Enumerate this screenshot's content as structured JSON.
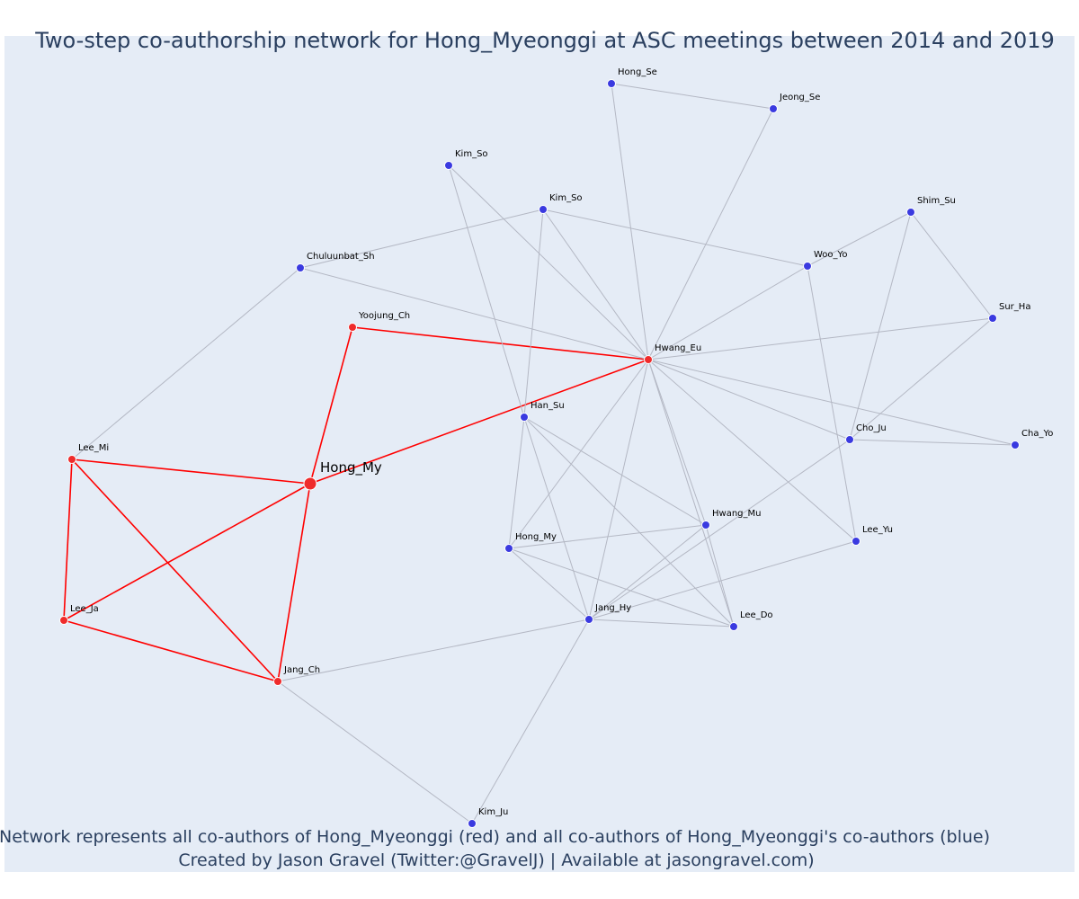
{
  "title": "Two-step co-authorship network for Hong_Myeonggi at ASC meetings between 2014 and 2019",
  "caption": {
    "line1": "Network represents all co-authors of Hong_Myeonggi (red) and all co-authors of Hong_Myeonggi's co-authors (blue)",
    "line2": "Created by Jason Gravel (Twitter:@GravelJ) | Available at jasongravel.com)"
  },
  "colors": {
    "background": "#e5ecf6",
    "red_node": "#ef2b2b",
    "blue_node": "#3a3ae0",
    "red_edge": "#ff0000",
    "grey_edge": "#b4b8c4",
    "text": "#2a3f5f"
  },
  "chart_data": {
    "type": "network",
    "nodes": [
      {
        "id": "hong_my_focal",
        "label": "Hong_My",
        "group": "focal"
      },
      {
        "id": "hwang_eu",
        "label": "Hwang_Eu",
        "group": "red"
      },
      {
        "id": "yoojung_ch",
        "label": "Yoojung_Ch",
        "group": "red"
      },
      {
        "id": "lee_mi",
        "label": "Lee_Mi",
        "group": "red"
      },
      {
        "id": "lee_ja",
        "label": "Lee_Ja",
        "group": "red"
      },
      {
        "id": "jang_ch",
        "label": "Jang_Ch",
        "group": "red"
      },
      {
        "id": "hong_se",
        "label": "Hong_Se",
        "group": "blue"
      },
      {
        "id": "jeong_se",
        "label": "Jeong_Se",
        "group": "blue"
      },
      {
        "id": "kim_so_1",
        "label": "Kim_So",
        "group": "blue"
      },
      {
        "id": "kim_so_2",
        "label": "Kim_So",
        "group": "blue"
      },
      {
        "id": "shim_su",
        "label": "Shim_Su",
        "group": "blue"
      },
      {
        "id": "chuluunbat_sh",
        "label": "Chuluunbat_Sh",
        "group": "blue"
      },
      {
        "id": "woo_yo",
        "label": "Woo_Yo",
        "group": "blue"
      },
      {
        "id": "sur_ha",
        "label": "Sur_Ha",
        "group": "blue"
      },
      {
        "id": "han_su",
        "label": "Han_Su",
        "group": "blue"
      },
      {
        "id": "cho_ju",
        "label": "Cho_Ju",
        "group": "blue"
      },
      {
        "id": "cha_yo",
        "label": "Cha_Yo",
        "group": "blue"
      },
      {
        "id": "hwang_mu",
        "label": "Hwang_Mu",
        "group": "blue"
      },
      {
        "id": "hong_my_2",
        "label": "Hong_My",
        "group": "blue"
      },
      {
        "id": "lee_yu",
        "label": "Lee_Yu",
        "group": "blue"
      },
      {
        "id": "jang_hy",
        "label": "Jang_Hy",
        "group": "blue"
      },
      {
        "id": "lee_do",
        "label": "Lee_Do",
        "group": "blue"
      },
      {
        "id": "kim_ju",
        "label": "Kim_Ju",
        "group": "blue"
      }
    ],
    "edges": [
      {
        "source": "hong_my_focal",
        "target": "hwang_eu",
        "kind": "red"
      },
      {
        "source": "hong_my_focal",
        "target": "yoojung_ch",
        "kind": "red"
      },
      {
        "source": "hong_my_focal",
        "target": "lee_mi",
        "kind": "red"
      },
      {
        "source": "hong_my_focal",
        "target": "lee_ja",
        "kind": "red"
      },
      {
        "source": "hong_my_focal",
        "target": "jang_ch",
        "kind": "red"
      },
      {
        "source": "yoojung_ch",
        "target": "hwang_eu",
        "kind": "red"
      },
      {
        "source": "lee_mi",
        "target": "lee_ja",
        "kind": "red"
      },
      {
        "source": "lee_mi",
        "target": "jang_ch",
        "kind": "red"
      },
      {
        "source": "lee_ja",
        "target": "jang_ch",
        "kind": "red"
      },
      {
        "source": "hong_se",
        "target": "jeong_se",
        "kind": "grey"
      },
      {
        "source": "hong_se",
        "target": "hwang_eu",
        "kind": "grey"
      },
      {
        "source": "jeong_se",
        "target": "hwang_eu",
        "kind": "grey"
      },
      {
        "source": "kim_so_1",
        "target": "hwang_eu",
        "kind": "grey"
      },
      {
        "source": "kim_so_1",
        "target": "han_su",
        "kind": "grey"
      },
      {
        "source": "kim_so_2",
        "target": "hwang_eu",
        "kind": "grey"
      },
      {
        "source": "kim_so_2",
        "target": "chuluunbat_sh",
        "kind": "grey"
      },
      {
        "source": "kim_so_2",
        "target": "woo_yo",
        "kind": "grey"
      },
      {
        "source": "kim_so_2",
        "target": "han_su",
        "kind": "grey"
      },
      {
        "source": "chuluunbat_sh",
        "target": "hwang_eu",
        "kind": "grey"
      },
      {
        "source": "chuluunbat_sh",
        "target": "lee_mi",
        "kind": "grey"
      },
      {
        "source": "shim_su",
        "target": "woo_yo",
        "kind": "grey"
      },
      {
        "source": "shim_su",
        "target": "sur_ha",
        "kind": "grey"
      },
      {
        "source": "shim_su",
        "target": "cho_ju",
        "kind": "grey"
      },
      {
        "source": "woo_yo",
        "target": "hwang_eu",
        "kind": "grey"
      },
      {
        "source": "woo_yo",
        "target": "lee_yu",
        "kind": "grey"
      },
      {
        "source": "sur_ha",
        "target": "hwang_eu",
        "kind": "grey"
      },
      {
        "source": "sur_ha",
        "target": "cho_ju",
        "kind": "grey"
      },
      {
        "source": "hwang_eu",
        "target": "cho_ju",
        "kind": "grey"
      },
      {
        "source": "hwang_eu",
        "target": "cha_yo",
        "kind": "grey"
      },
      {
        "source": "hwang_eu",
        "target": "lee_yu",
        "kind": "grey"
      },
      {
        "source": "hwang_eu",
        "target": "hwang_mu",
        "kind": "grey"
      },
      {
        "source": "hwang_eu",
        "target": "lee_do",
        "kind": "grey"
      },
      {
        "source": "hwang_eu",
        "target": "jang_hy",
        "kind": "grey"
      },
      {
        "source": "hwang_eu",
        "target": "hong_my_2",
        "kind": "grey"
      },
      {
        "source": "cho_ju",
        "target": "cha_yo",
        "kind": "grey"
      },
      {
        "source": "cho_ju",
        "target": "jang_hy",
        "kind": "grey"
      },
      {
        "source": "han_su",
        "target": "hwang_mu",
        "kind": "grey"
      },
      {
        "source": "han_su",
        "target": "hong_my_2",
        "kind": "grey"
      },
      {
        "source": "han_su",
        "target": "jang_hy",
        "kind": "grey"
      },
      {
        "source": "han_su",
        "target": "lee_do",
        "kind": "grey"
      },
      {
        "source": "hwang_mu",
        "target": "hong_my_2",
        "kind": "grey"
      },
      {
        "source": "hwang_mu",
        "target": "jang_hy",
        "kind": "grey"
      },
      {
        "source": "hwang_mu",
        "target": "lee_do",
        "kind": "grey"
      },
      {
        "source": "hong_my_2",
        "target": "jang_hy",
        "kind": "grey"
      },
      {
        "source": "hong_my_2",
        "target": "lee_do",
        "kind": "grey"
      },
      {
        "source": "jang_hy",
        "target": "lee_do",
        "kind": "grey"
      },
      {
        "source": "jang_hy",
        "target": "lee_yu",
        "kind": "grey"
      },
      {
        "source": "jang_hy",
        "target": "jang_ch",
        "kind": "grey"
      },
      {
        "source": "jang_hy",
        "target": "kim_ju",
        "kind": "grey"
      },
      {
        "source": "jang_ch",
        "target": "kim_ju",
        "kind": "grey"
      }
    ]
  }
}
